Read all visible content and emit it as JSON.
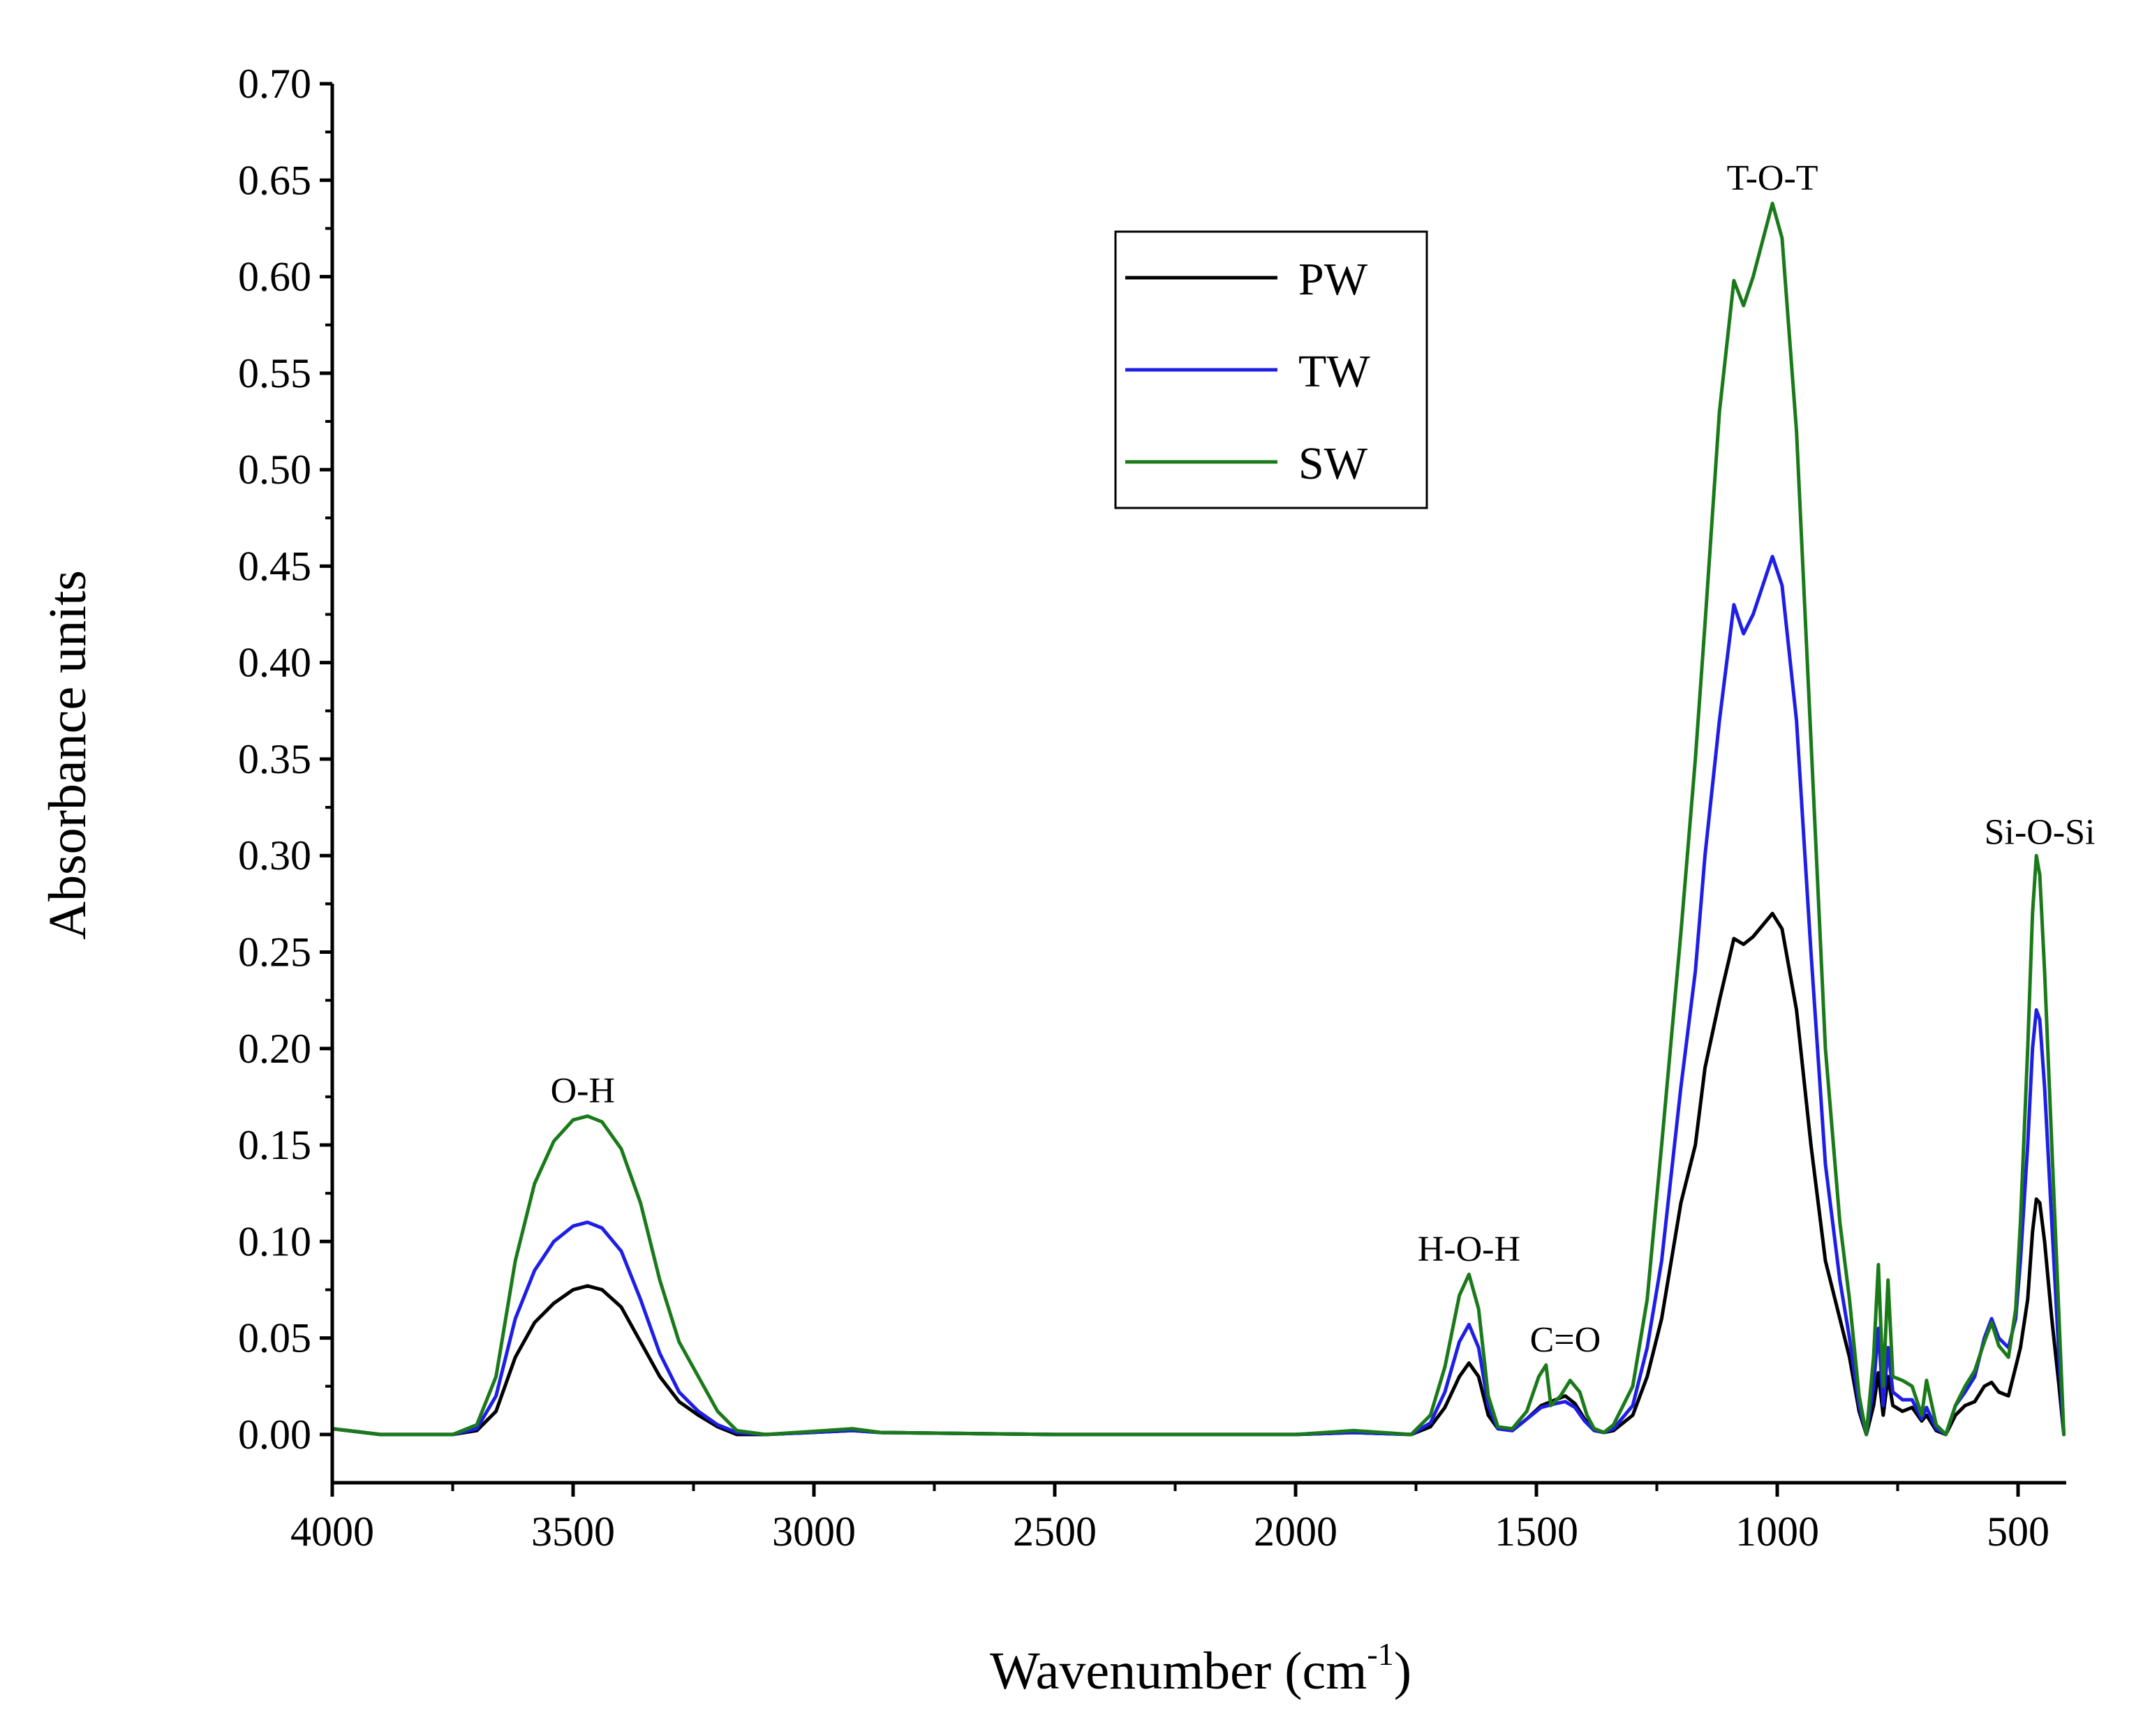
{
  "chart_data": {
    "type": "line",
    "title": "",
    "xlabel": "Wavenumber (cm",
    "xlabel_sup": "-1",
    "xlabel_end": ")",
    "ylabel": "Absorbance units",
    "xlim": [
      4000,
      400
    ],
    "ylim": [
      -0.025,
      0.7
    ],
    "x_reversed": true,
    "x_ticks": [
      4000,
      3500,
      3000,
      2500,
      2000,
      1500,
      1000,
      500
    ],
    "x_tick_labels": [
      "4000",
      "3500",
      "3000",
      "2500",
      "2000",
      "1500",
      "1000",
      "500"
    ],
    "y_ticks": [
      0,
      0.05,
      0.1,
      0.15,
      0.2,
      0.25,
      0.3,
      0.35,
      0.4,
      0.45,
      0.5,
      0.55,
      0.6,
      0.65,
      0.7
    ],
    "y_tick_labels": [
      "0.00",
      "0.05",
      "0.10",
      "0.15",
      "0.20",
      "0.25",
      "0.30",
      "0.35",
      "0.40",
      "0.45",
      "0.50",
      "0.55",
      "0.60",
      "0.65",
      "0.70"
    ],
    "legend_position": "top-center",
    "annotations": [
      {
        "text": "O-H",
        "x": 3480,
        "y": 0.172
      },
      {
        "text": "H-O-H",
        "x": 1640,
        "y": 0.09
      },
      {
        "text": "C=O",
        "x": 1440,
        "y": 0.043
      },
      {
        "text": "T-O-T",
        "x": 1010,
        "y": 0.645
      },
      {
        "text": "Si-O-Si",
        "x": 455,
        "y": 0.306
      }
    ],
    "series": [
      {
        "name": "PW",
        "color": "#000000",
        "points": [
          [
            4000,
            0.003
          ],
          [
            3900,
            0.0
          ],
          [
            3750,
            0.0
          ],
          [
            3700,
            0.002
          ],
          [
            3660,
            0.012
          ],
          [
            3620,
            0.04
          ],
          [
            3580,
            0.058
          ],
          [
            3540,
            0.068
          ],
          [
            3500,
            0.075
          ],
          [
            3470,
            0.077
          ],
          [
            3440,
            0.075
          ],
          [
            3400,
            0.066
          ],
          [
            3360,
            0.048
          ],
          [
            3320,
            0.03
          ],
          [
            3280,
            0.017
          ],
          [
            3240,
            0.01
          ],
          [
            3200,
            0.004
          ],
          [
            3160,
            0.0
          ],
          [
            3100,
            0.0
          ],
          [
            2920,
            0.002
          ],
          [
            2860,
            0.001
          ],
          [
            2500,
            0.0
          ],
          [
            2000,
            0.0
          ],
          [
            1880,
            0.001
          ],
          [
            1760,
            0.0
          ],
          [
            1720,
            0.004
          ],
          [
            1690,
            0.014
          ],
          [
            1660,
            0.03
          ],
          [
            1640,
            0.037
          ],
          [
            1620,
            0.03
          ],
          [
            1600,
            0.01
          ],
          [
            1580,
            0.003
          ],
          [
            1550,
            0.002
          ],
          [
            1520,
            0.008
          ],
          [
            1490,
            0.015
          ],
          [
            1460,
            0.018
          ],
          [
            1440,
            0.02
          ],
          [
            1420,
            0.016
          ],
          [
            1400,
            0.008
          ],
          [
            1380,
            0.003
          ],
          [
            1360,
            0.001
          ],
          [
            1340,
            0.002
          ],
          [
            1300,
            0.01
          ],
          [
            1270,
            0.03
          ],
          [
            1240,
            0.06
          ],
          [
            1200,
            0.12
          ],
          [
            1170,
            0.15
          ],
          [
            1150,
            0.19
          ],
          [
            1120,
            0.225
          ],
          [
            1090,
            0.257
          ],
          [
            1070,
            0.254
          ],
          [
            1050,
            0.258
          ],
          [
            1010,
            0.27
          ],
          [
            990,
            0.262
          ],
          [
            960,
            0.22
          ],
          [
            930,
            0.15
          ],
          [
            900,
            0.09
          ],
          [
            870,
            0.06
          ],
          [
            850,
            0.04
          ],
          [
            830,
            0.012
          ],
          [
            815,
            0.0
          ],
          [
            800,
            0.015
          ],
          [
            790,
            0.032
          ],
          [
            780,
            0.01
          ],
          [
            770,
            0.03
          ],
          [
            760,
            0.015
          ],
          [
            740,
            0.012
          ],
          [
            720,
            0.014
          ],
          [
            700,
            0.007
          ],
          [
            690,
            0.01
          ],
          [
            670,
            0.002
          ],
          [
            650,
            0.0
          ],
          [
            630,
            0.01
          ],
          [
            610,
            0.015
          ],
          [
            590,
            0.017
          ],
          [
            570,
            0.025
          ],
          [
            555,
            0.027
          ],
          [
            540,
            0.022
          ],
          [
            520,
            0.02
          ],
          [
            505,
            0.035
          ],
          [
            495,
            0.045
          ],
          [
            480,
            0.07
          ],
          [
            470,
            0.105
          ],
          [
            462,
            0.122
          ],
          [
            455,
            0.12
          ],
          [
            445,
            0.1
          ],
          [
            430,
            0.06
          ],
          [
            415,
            0.025
          ],
          [
            405,
            0.0
          ]
        ]
      },
      {
        "name": "TW",
        "color": "#1e1ee6",
        "points": [
          [
            4000,
            0.003
          ],
          [
            3900,
            0.0
          ],
          [
            3750,
            0.0
          ],
          [
            3700,
            0.003
          ],
          [
            3660,
            0.02
          ],
          [
            3620,
            0.06
          ],
          [
            3580,
            0.085
          ],
          [
            3540,
            0.1
          ],
          [
            3500,
            0.108
          ],
          [
            3470,
            0.11
          ],
          [
            3440,
            0.107
          ],
          [
            3400,
            0.095
          ],
          [
            3360,
            0.07
          ],
          [
            3320,
            0.042
          ],
          [
            3280,
            0.022
          ],
          [
            3240,
            0.012
          ],
          [
            3200,
            0.005
          ],
          [
            3160,
            0.001
          ],
          [
            3100,
            0.0
          ],
          [
            2920,
            0.002
          ],
          [
            2860,
            0.001
          ],
          [
            2500,
            0.0
          ],
          [
            2000,
            0.0
          ],
          [
            1880,
            0.001
          ],
          [
            1760,
            0.0
          ],
          [
            1720,
            0.006
          ],
          [
            1690,
            0.022
          ],
          [
            1660,
            0.048
          ],
          [
            1640,
            0.057
          ],
          [
            1620,
            0.045
          ],
          [
            1600,
            0.015
          ],
          [
            1580,
            0.003
          ],
          [
            1550,
            0.002
          ],
          [
            1520,
            0.008
          ],
          [
            1490,
            0.014
          ],
          [
            1460,
            0.016
          ],
          [
            1440,
            0.017
          ],
          [
            1420,
            0.014
          ],
          [
            1400,
            0.007
          ],
          [
            1380,
            0.002
          ],
          [
            1360,
            0.001
          ],
          [
            1340,
            0.003
          ],
          [
            1300,
            0.015
          ],
          [
            1270,
            0.045
          ],
          [
            1240,
            0.09
          ],
          [
            1200,
            0.18
          ],
          [
            1170,
            0.24
          ],
          [
            1150,
            0.3
          ],
          [
            1120,
            0.37
          ],
          [
            1090,
            0.43
          ],
          [
            1070,
            0.415
          ],
          [
            1050,
            0.425
          ],
          [
            1010,
            0.455
          ],
          [
            990,
            0.44
          ],
          [
            960,
            0.37
          ],
          [
            930,
            0.25
          ],
          [
            900,
            0.14
          ],
          [
            870,
            0.08
          ],
          [
            850,
            0.05
          ],
          [
            830,
            0.015
          ],
          [
            815,
            0.0
          ],
          [
            800,
            0.025
          ],
          [
            790,
            0.055
          ],
          [
            780,
            0.015
          ],
          [
            770,
            0.045
          ],
          [
            760,
            0.022
          ],
          [
            740,
            0.018
          ],
          [
            720,
            0.018
          ],
          [
            700,
            0.008
          ],
          [
            690,
            0.014
          ],
          [
            670,
            0.003
          ],
          [
            650,
            0.0
          ],
          [
            630,
            0.015
          ],
          [
            610,
            0.022
          ],
          [
            590,
            0.03
          ],
          [
            570,
            0.05
          ],
          [
            555,
            0.06
          ],
          [
            540,
            0.05
          ],
          [
            520,
            0.045
          ],
          [
            505,
            0.06
          ],
          [
            495,
            0.09
          ],
          [
            480,
            0.15
          ],
          [
            470,
            0.2
          ],
          [
            462,
            0.22
          ],
          [
            455,
            0.215
          ],
          [
            445,
            0.18
          ],
          [
            430,
            0.11
          ],
          [
            415,
            0.04
          ],
          [
            405,
            0.0
          ]
        ]
      },
      {
        "name": "SW",
        "color": "#1a7a1a",
        "points": [
          [
            4000,
            0.003
          ],
          [
            3900,
            0.0
          ],
          [
            3750,
            0.0
          ],
          [
            3700,
            0.005
          ],
          [
            3660,
            0.03
          ],
          [
            3620,
            0.09
          ],
          [
            3580,
            0.13
          ],
          [
            3540,
            0.152
          ],
          [
            3500,
            0.163
          ],
          [
            3470,
            0.165
          ],
          [
            3440,
            0.162
          ],
          [
            3400,
            0.148
          ],
          [
            3360,
            0.12
          ],
          [
            3320,
            0.08
          ],
          [
            3280,
            0.048
          ],
          [
            3240,
            0.03
          ],
          [
            3200,
            0.012
          ],
          [
            3160,
            0.002
          ],
          [
            3100,
            0.0
          ],
          [
            2920,
            0.003
          ],
          [
            2860,
            0.001
          ],
          [
            2500,
            0.0
          ],
          [
            2000,
            0.0
          ],
          [
            1880,
            0.002
          ],
          [
            1760,
            0.0
          ],
          [
            1720,
            0.01
          ],
          [
            1690,
            0.035
          ],
          [
            1660,
            0.072
          ],
          [
            1640,
            0.083
          ],
          [
            1620,
            0.065
          ],
          [
            1600,
            0.02
          ],
          [
            1580,
            0.004
          ],
          [
            1550,
            0.003
          ],
          [
            1520,
            0.012
          ],
          [
            1495,
            0.03
          ],
          [
            1480,
            0.036
          ],
          [
            1470,
            0.015
          ],
          [
            1450,
            0.02
          ],
          [
            1430,
            0.028
          ],
          [
            1410,
            0.022
          ],
          [
            1395,
            0.01
          ],
          [
            1380,
            0.003
          ],
          [
            1360,
            0.001
          ],
          [
            1340,
            0.005
          ],
          [
            1300,
            0.025
          ],
          [
            1270,
            0.07
          ],
          [
            1240,
            0.15
          ],
          [
            1200,
            0.26
          ],
          [
            1170,
            0.35
          ],
          [
            1150,
            0.42
          ],
          [
            1120,
            0.53
          ],
          [
            1090,
            0.598
          ],
          [
            1070,
            0.585
          ],
          [
            1050,
            0.6
          ],
          [
            1010,
            0.638
          ],
          [
            990,
            0.62
          ],
          [
            960,
            0.52
          ],
          [
            930,
            0.36
          ],
          [
            900,
            0.2
          ],
          [
            870,
            0.11
          ],
          [
            850,
            0.07
          ],
          [
            830,
            0.02
          ],
          [
            815,
            0.0
          ],
          [
            800,
            0.04
          ],
          [
            790,
            0.088
          ],
          [
            780,
            0.025
          ],
          [
            770,
            0.08
          ],
          [
            760,
            0.03
          ],
          [
            740,
            0.028
          ],
          [
            720,
            0.025
          ],
          [
            700,
            0.01
          ],
          [
            690,
            0.028
          ],
          [
            670,
            0.005
          ],
          [
            650,
            0.0
          ],
          [
            630,
            0.015
          ],
          [
            610,
            0.025
          ],
          [
            590,
            0.033
          ],
          [
            570,
            0.048
          ],
          [
            555,
            0.058
          ],
          [
            540,
            0.046
          ],
          [
            520,
            0.04
          ],
          [
            505,
            0.065
          ],
          [
            495,
            0.11
          ],
          [
            480,
            0.2
          ],
          [
            470,
            0.27
          ],
          [
            462,
            0.3
          ],
          [
            455,
            0.29
          ],
          [
            445,
            0.24
          ],
          [
            430,
            0.15
          ],
          [
            415,
            0.06
          ],
          [
            405,
            0.0
          ]
        ]
      }
    ]
  }
}
